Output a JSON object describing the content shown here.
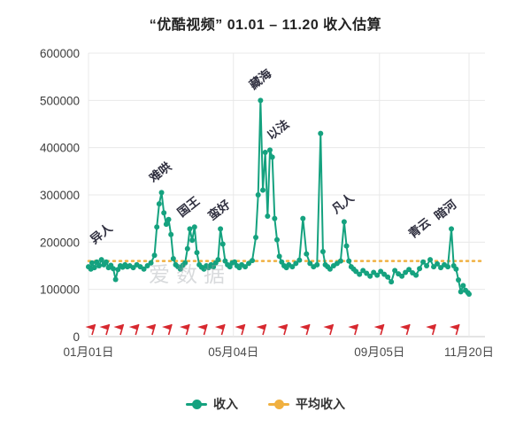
{
  "title": "“优酷视频” 01.01 – 11.20 收入估算",
  "watermark": "爱数据",
  "legend": {
    "income": "收入",
    "average": "平均收入"
  },
  "colors": {
    "line": "#15a27f",
    "average_line": "#f0b040",
    "flag": "#d7282f",
    "grid": "#e8e8e8",
    "axis": "#c9c9c9",
    "axis_text": "#4a4a4a",
    "annotation": "#2f2f3f"
  },
  "chart_data": {
    "type": "line",
    "title": "“优酷视频” 01.01 – 11.20 收入估算",
    "xlabel": "",
    "ylabel": "",
    "ylim": [
      0,
      600000
    ],
    "y_ticks": [
      0,
      100000,
      200000,
      300000,
      400000,
      500000,
      600000
    ],
    "x_day_max": 323,
    "x_ticks": [
      {
        "day": 0,
        "label": "01月01日"
      },
      {
        "day": 123,
        "label": "05月04日"
      },
      {
        "day": 247,
        "label": "09月05日"
      },
      {
        "day": 323,
        "label": "11月20日"
      }
    ],
    "grid": true,
    "legend_position": "bottom",
    "average_income": 160000,
    "series": [
      {
        "name": "收入",
        "points": [
          [
            0,
            148000
          ],
          [
            2,
            143000
          ],
          [
            3,
            156000
          ],
          [
            5,
            146000
          ],
          [
            7,
            158000
          ],
          [
            9,
            150000
          ],
          [
            11,
            163000
          ],
          [
            13,
            152000
          ],
          [
            15,
            158000
          ],
          [
            17,
            146000
          ],
          [
            19,
            151000
          ],
          [
            21,
            144000
          ],
          [
            23,
            121000
          ],
          [
            25,
            142000
          ],
          [
            27,
            150000
          ],
          [
            29,
            147000
          ],
          [
            31,
            152000
          ],
          [
            33,
            148000
          ],
          [
            35,
            150000
          ],
          [
            38,
            146000
          ],
          [
            41,
            152000
          ],
          [
            44,
            148000
          ],
          [
            47,
            143000
          ],
          [
            50,
            150000
          ],
          [
            53,
            156000
          ],
          [
            56,
            172000
          ],
          [
            58,
            232000
          ],
          [
            60,
            281000
          ],
          [
            62,
            305000
          ],
          [
            64,
            262000
          ],
          [
            66,
            238000
          ],
          [
            68,
            248000
          ],
          [
            70,
            216000
          ],
          [
            72,
            165000
          ],
          [
            74,
            152000
          ],
          [
            76,
            148000
          ],
          [
            78,
            143000
          ],
          [
            80,
            151000
          ],
          [
            82,
            156000
          ],
          [
            84,
            186000
          ],
          [
            86,
            228000
          ],
          [
            88,
            204000
          ],
          [
            90,
            232000
          ],
          [
            92,
            178000
          ],
          [
            94,
            152000
          ],
          [
            96,
            147000
          ],
          [
            98,
            143000
          ],
          [
            100,
            150000
          ],
          [
            102,
            146000
          ],
          [
            104,
            152000
          ],
          [
            106,
            148000
          ],
          [
            108,
            156000
          ],
          [
            110,
            163000
          ],
          [
            112,
            228000
          ],
          [
            114,
            196000
          ],
          [
            116,
            160000
          ],
          [
            118,
            152000
          ],
          [
            120,
            148000
          ],
          [
            122,
            156000
          ],
          [
            124,
            158000
          ],
          [
            126,
            150000
          ],
          [
            128,
            146000
          ],
          [
            130,
            152000
          ],
          [
            133,
            148000
          ],
          [
            136,
            155000
          ],
          [
            139,
            161000
          ],
          [
            142,
            210000
          ],
          [
            144,
            300000
          ],
          [
            146,
            500000
          ],
          [
            148,
            310000
          ],
          [
            150,
            390000
          ],
          [
            152,
            255000
          ],
          [
            154,
            395000
          ],
          [
            156,
            380000
          ],
          [
            158,
            250000
          ],
          [
            160,
            205000
          ],
          [
            162,
            170000
          ],
          [
            164,
            158000
          ],
          [
            166,
            150000
          ],
          [
            168,
            146000
          ],
          [
            170,
            152000
          ],
          [
            173,
            148000
          ],
          [
            176,
            155000
          ],
          [
            179,
            162000
          ],
          [
            182,
            250000
          ],
          [
            185,
            175000
          ],
          [
            188,
            155000
          ],
          [
            191,
            148000
          ],
          [
            194,
            152000
          ],
          [
            197,
            430000
          ],
          [
            199,
            180000
          ],
          [
            201,
            152000
          ],
          [
            203,
            148000
          ],
          [
            205,
            143000
          ],
          [
            208,
            150000
          ],
          [
            211,
            155000
          ],
          [
            214,
            160000
          ],
          [
            217,
            243000
          ],
          [
            219,
            192000
          ],
          [
            221,
            160000
          ],
          [
            223,
            148000
          ],
          [
            225,
            143000
          ],
          [
            227,
            138000
          ],
          [
            230,
            132000
          ],
          [
            233,
            140000
          ],
          [
            236,
            134000
          ],
          [
            239,
            128000
          ],
          [
            242,
            136000
          ],
          [
            245,
            130000
          ],
          [
            248,
            138000
          ],
          [
            251,
            132000
          ],
          [
            254,
            126000
          ],
          [
            257,
            116000
          ],
          [
            260,
            140000
          ],
          [
            263,
            133000
          ],
          [
            266,
            128000
          ],
          [
            269,
            136000
          ],
          [
            272,
            142000
          ],
          [
            275,
            135000
          ],
          [
            278,
            130000
          ],
          [
            281,
            144000
          ],
          [
            284,
            158000
          ],
          [
            287,
            150000
          ],
          [
            290,
            163000
          ],
          [
            293,
            148000
          ],
          [
            296,
            154000
          ],
          [
            299,
            146000
          ],
          [
            302,
            152000
          ],
          [
            305,
            148000
          ],
          [
            308,
            228000
          ],
          [
            310,
            150000
          ],
          [
            312,
            143000
          ],
          [
            314,
            120000
          ],
          [
            316,
            95000
          ],
          [
            318,
            108000
          ],
          [
            320,
            98000
          ],
          [
            322,
            93000
          ],
          [
            323,
            90000
          ]
        ]
      }
    ],
    "annotations": [
      {
        "label": "异人",
        "day": 8,
        "value": 188000
      },
      {
        "label": "难哄",
        "day": 58,
        "value": 318000
      },
      {
        "label": "国王",
        "day": 82,
        "value": 245000
      },
      {
        "label": "蛮好",
        "day": 108,
        "value": 238000
      },
      {
        "label": "藏海",
        "day": 143,
        "value": 515000
      },
      {
        "label": "以法",
        "day": 158,
        "value": 408000
      },
      {
        "label": "凡人",
        "day": 213,
        "value": 252000
      },
      {
        "label": "青云",
        "day": 278,
        "value": 200000
      },
      {
        "label": "暗河",
        "day": 300,
        "value": 238000
      }
    ],
    "flags_days": [
      3,
      15,
      27,
      40,
      54,
      68,
      83,
      98,
      113,
      130,
      148,
      166,
      185,
      205,
      226,
      248,
      270,
      292,
      312
    ]
  }
}
